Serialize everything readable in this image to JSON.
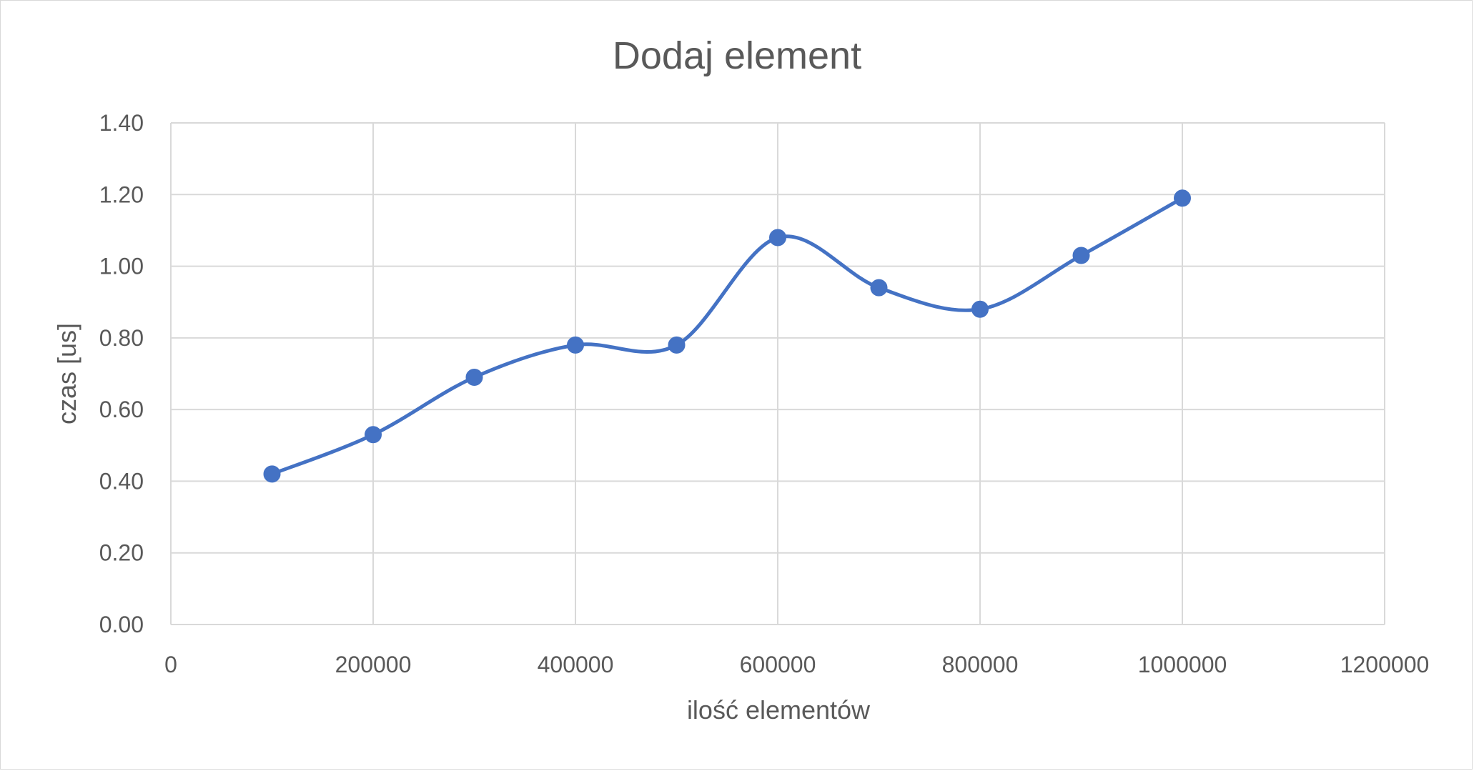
{
  "chart_data": {
    "type": "scatter",
    "title": "Dodaj element",
    "xlabel": "ilość elementów",
    "ylabel": "czas [us]",
    "xlim": [
      0,
      1200000
    ],
    "ylim": [
      0,
      1.4
    ],
    "x_ticks": [
      0,
      200000,
      400000,
      600000,
      800000,
      1000000,
      1200000
    ],
    "x_tick_labels": [
      "0",
      "200000",
      "400000",
      "600000",
      "800000",
      "1000000",
      "1200000"
    ],
    "y_ticks": [
      0,
      0.2,
      0.4,
      0.6,
      0.8,
      1.0,
      1.2,
      1.4
    ],
    "y_tick_labels": [
      "0.00",
      "0.20",
      "0.40",
      "0.60",
      "0.80",
      "1.00",
      "1.20",
      "1.40"
    ],
    "grid": true,
    "smooth_line": true,
    "legend": "none",
    "series": [
      {
        "x": [
          100000,
          200000,
          300000,
          400000,
          500000,
          600000,
          700000,
          800000,
          900000,
          1000000
        ],
        "y": [
          0.42,
          0.53,
          0.69,
          0.78,
          0.78,
          1.08,
          0.94,
          0.88,
          1.03,
          1.19
        ],
        "color": "#4472c4"
      }
    ],
    "colors": {
      "grid": "#d9d9d9",
      "text": "#595959",
      "series": "#4472c4"
    }
  }
}
